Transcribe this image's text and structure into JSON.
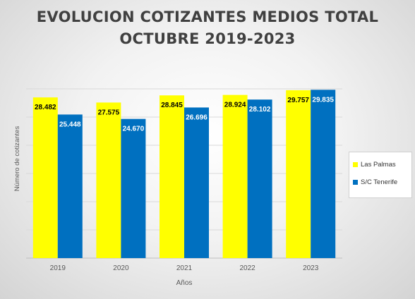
{
  "chart_data": {
    "type": "bar",
    "title_lines": [
      "EVOLUCION COTIZANTES MEDIOS TOTAL",
      "OCTUBRE 2019-2023"
    ],
    "xlabel": "Años",
    "ylabel": "Número de cotizantes",
    "categories": [
      "2019",
      "2020",
      "2021",
      "2022",
      "2023"
    ],
    "series": [
      {
        "name": "Las Palmas",
        "color": "#ffff00",
        "values": [
          28482,
          27575,
          28845,
          28924,
          29757
        ],
        "labels": [
          "28.482",
          "27.575",
          "28.845",
          "28.924",
          "29.757"
        ]
      },
      {
        "name": "S/C Tenerife",
        "color": "#0070c0",
        "values": [
          25448,
          24670,
          26696,
          28102,
          29835
        ],
        "labels": [
          "25.448",
          "24.670",
          "26.696",
          "28.102",
          "29.835"
        ]
      }
    ],
    "ylim": [
      0,
      30000
    ],
    "grid": true,
    "legend_position": "right"
  }
}
